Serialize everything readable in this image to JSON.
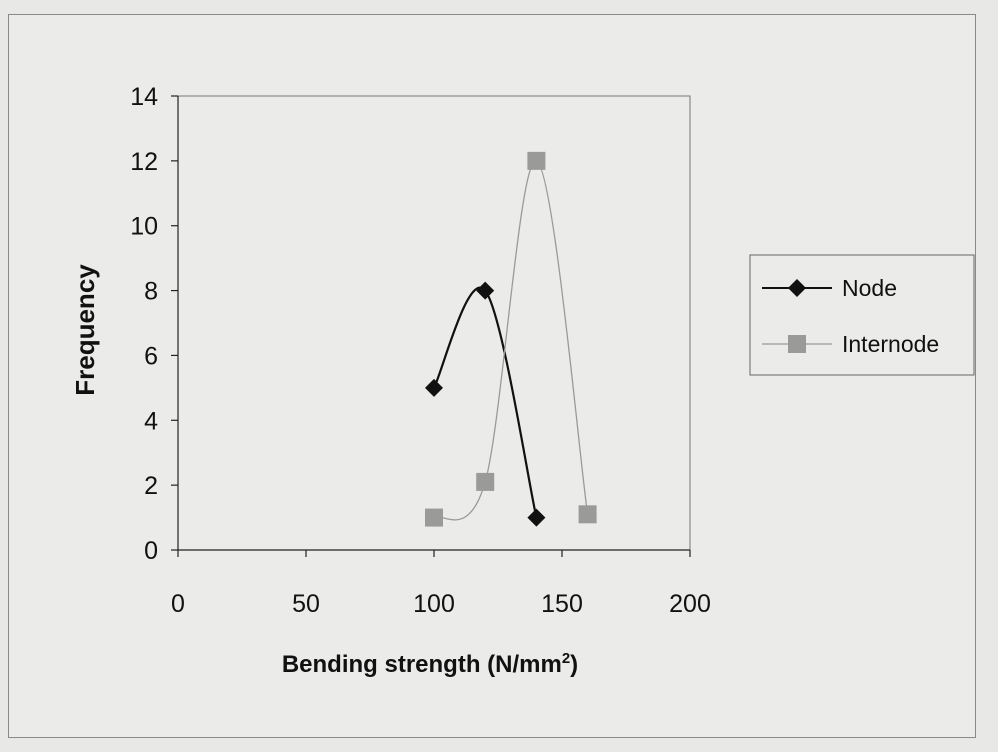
{
  "chart_data": {
    "type": "line",
    "xlabel": "Bending strength (N/mm",
    "xlabel_sup": "2",
    "xlabel_end": ")",
    "ylabel": "Frequency",
    "xlim": [
      0,
      200
    ],
    "ylim": [
      0,
      14
    ],
    "xticks": [
      0,
      50,
      100,
      150,
      200
    ],
    "yticks": [
      0,
      2,
      4,
      6,
      8,
      10,
      12,
      14
    ],
    "grid": false,
    "legend_position": "right",
    "series": [
      {
        "name": "Node",
        "marker": "diamond",
        "color": "#111111",
        "points": [
          {
            "x": 100,
            "y": 5
          },
          {
            "x": 120,
            "y": 8
          },
          {
            "x": 140,
            "y": 1
          }
        ]
      },
      {
        "name": "Internode",
        "marker": "square",
        "color": "#9a9a98",
        "points": [
          {
            "x": 100,
            "y": 1
          },
          {
            "x": 120,
            "y": 2.1
          },
          {
            "x": 140,
            "y": 12
          },
          {
            "x": 160,
            "y": 1.1
          }
        ]
      }
    ]
  }
}
